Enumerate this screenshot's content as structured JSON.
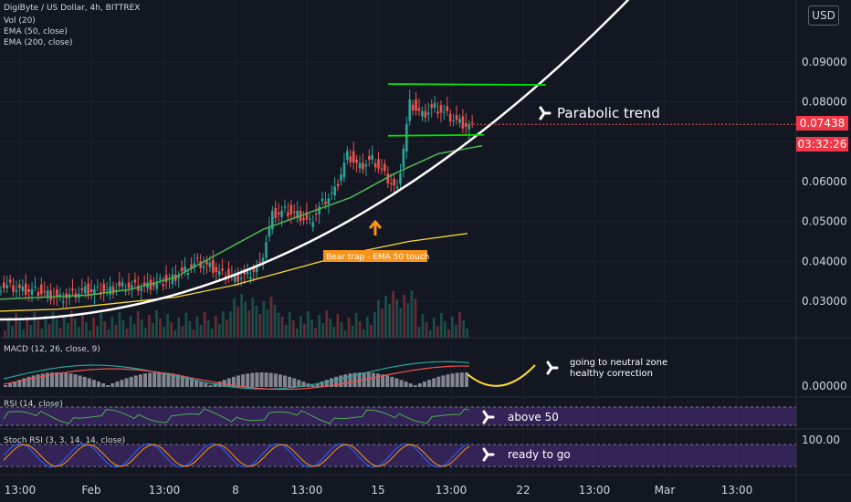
{
  "header": {
    "title": "DigiByte / US Dollar, 4h, BITTREX",
    "indicators": [
      "Vol (20)",
      "EMA (50, close)",
      "EMA (200, close)"
    ]
  },
  "currency_button": "USD",
  "price_tag": {
    "price": "0.07438",
    "countdown": "03:32:26",
    "color": "#f23645"
  },
  "panes": {
    "macd": "MACD (12, 26, close, 9)",
    "rsi": "RSI (14, close)",
    "stoch": "Stoch RSI (3, 3, 14, 14, close)"
  },
  "annotations": {
    "parabolic": "Parabolic trend",
    "bear_trap": "Bear trap - EMA 50 touch",
    "macd_note_1": "going to neutral zone",
    "macd_note_2": "healthy correction",
    "rsi_note": "above 50",
    "stoch_note": "ready to go"
  },
  "colors": {
    "background": "#131722",
    "up": "#26a69a",
    "down": "#ef5350",
    "ema50": "#4caf50",
    "ema200": "#fdd835",
    "channel": "#00e600",
    "annotation_orange": "#f7931a",
    "rsi_band": "#4a2b7a"
  },
  "chart_data": {
    "type": "candlestick",
    "title": "DigiByte / US Dollar, 4h, BITTREX",
    "price_axis": {
      "labels": [
        "0.03000",
        "0.04000",
        "0.05000",
        "0.06000",
        "0.07000",
        "0.08000",
        "0.09000"
      ],
      "values": [
        0.03,
        0.04,
        0.05,
        0.06,
        0.07,
        0.08,
        0.09
      ]
    },
    "macd_axis": {
      "labels": [
        "0.00000"
      ],
      "values": [
        0
      ]
    },
    "stoch_axis": {
      "labels": [
        "100.00"
      ],
      "values": [
        100
      ]
    },
    "time_axis": [
      "13:00",
      "Feb",
      "13:00",
      "8",
      "13:00",
      "15",
      "13:00",
      "22",
      "13:00",
      "Mar",
      "13:00"
    ],
    "last_price": 0.07438,
    "approx_close_series": [
      0.034,
      0.033,
      0.033,
      0.032,
      0.031,
      0.032,
      0.033,
      0.033,
      0.033,
      0.034,
      0.034,
      0.034,
      0.035,
      0.036,
      0.038,
      0.04,
      0.039,
      0.037,
      0.036,
      0.037,
      0.039,
      0.052,
      0.053,
      0.052,
      0.05,
      0.055,
      0.058,
      0.067,
      0.064,
      0.066,
      0.062,
      0.058,
      0.08,
      0.077,
      0.079,
      0.077,
      0.075,
      0.074
    ],
    "ema50_approx": [
      0.0305,
      0.031,
      0.0315,
      0.033,
      0.036,
      0.042,
      0.048,
      0.052,
      0.056,
      0.062,
      0.067,
      0.069
    ],
    "ema200_approx": [
      0.0275,
      0.028,
      0.0295,
      0.031,
      0.034,
      0.038,
      0.042,
      0.045,
      0.047
    ],
    "channel": {
      "top": 0.0845,
      "bottom": 0.0715
    }
  }
}
